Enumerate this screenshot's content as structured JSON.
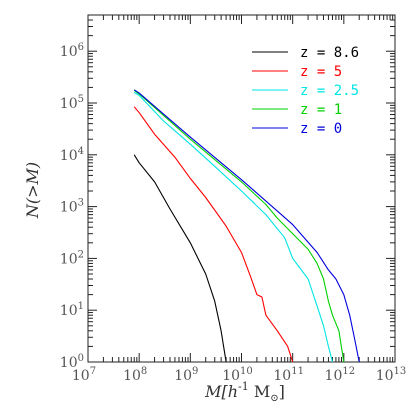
{
  "chart_data": {
    "type": "line",
    "xlabel_main": "M[h",
    "xlabel_sup": "-1",
    "xlabel_tail": " M",
    "xlabel_sub": "⊙",
    "xlabel_end": "]",
    "ylabel": "N(>M)",
    "xscale": "log",
    "yscale": "log",
    "xlim": [
      10000000.0,
      10000000000000.0
    ],
    "ylim": [
      1,
      5000000.0
    ],
    "x_ticks": [
      {
        "exp": 7,
        "base": "10",
        "sup": "7"
      },
      {
        "exp": 8,
        "base": "10",
        "sup": "8"
      },
      {
        "exp": 9,
        "base": "10",
        "sup": "9"
      },
      {
        "exp": 10,
        "base": "10",
        "sup": "10"
      },
      {
        "exp": 11,
        "base": "10",
        "sup": "11"
      },
      {
        "exp": 12,
        "base": "10",
        "sup": "12"
      },
      {
        "exp": 13,
        "base": "10",
        "sup": "13"
      }
    ],
    "y_ticks": [
      {
        "exp": 0,
        "base": "10",
        "sup": "0"
      },
      {
        "exp": 1,
        "base": "10",
        "sup": "1"
      },
      {
        "exp": 2,
        "base": "10",
        "sup": "2"
      },
      {
        "exp": 3,
        "base": "10",
        "sup": "3"
      },
      {
        "exp": 4,
        "base": "10",
        "sup": "4"
      },
      {
        "exp": 5,
        "base": "10",
        "sup": "5"
      },
      {
        "exp": 6,
        "base": "10",
        "sup": "6"
      }
    ],
    "grid": false,
    "legend_position": "top-right",
    "series": [
      {
        "name": "z = 8.6",
        "color": "#000000",
        "points": [
          [
            80000000.0,
            10000
          ],
          [
            100000000.0,
            7000
          ],
          [
            200000000.0,
            3000
          ],
          [
            400000000.0,
            900
          ],
          [
            1000000000.0,
            200
          ],
          [
            2000000000.0,
            50
          ],
          [
            3000000000.0,
            15
          ],
          [
            4000000000.0,
            4
          ],
          [
            5000000000.0,
            1
          ]
        ]
      },
      {
        "name": "z = 5",
        "color": "#ff0000",
        "points": [
          [
            80000000.0,
            85000
          ],
          [
            100000000.0,
            65000
          ],
          [
            200000000.0,
            25000
          ],
          [
            500000000.0,
            9000
          ],
          [
            1000000000.0,
            3500
          ],
          [
            2000000000.0,
            1500
          ],
          [
            5000000000.0,
            420
          ],
          [
            10000000000.0,
            130
          ],
          [
            15000000000.0,
            45
          ],
          [
            20000000000.0,
            20
          ],
          [
            25000000000.0,
            18
          ],
          [
            30000000000.0,
            8
          ],
          [
            50000000000.0,
            4
          ],
          [
            80000000000.0,
            2
          ],
          [
            100000000000.0,
            1
          ]
        ]
      },
      {
        "name": "z = 2.5",
        "color": "#00e5e5",
        "points": [
          [
            80000000.0,
            160000
          ],
          [
            100000000.0,
            140000
          ],
          [
            300000000.0,
            45000
          ],
          [
            1000000000.0,
            16000
          ],
          [
            3000000000.0,
            6000
          ],
          [
            10000000000.0,
            2000
          ],
          [
            30000000000.0,
            700
          ],
          [
            70000000000.0,
            250
          ],
          [
            100000000000.0,
            100
          ],
          [
            200000000000.0,
            40
          ],
          [
            300000000000.0,
            12
          ],
          [
            400000000000.0,
            5
          ],
          [
            500000000000.0,
            2
          ],
          [
            600000000000.0,
            1
          ]
        ]
      },
      {
        "name": "z = 1",
        "color": "#00d000",
        "points": [
          [
            80000000.0,
            175000
          ],
          [
            100000000.0,
            150000
          ],
          [
            1000000000.0,
            20000
          ],
          [
            10000000000.0,
            3000
          ],
          [
            30000000000.0,
            1100
          ],
          [
            50000000000.0,
            600
          ],
          [
            100000000000.0,
            300
          ],
          [
            200000000000.0,
            150
          ],
          [
            300000000000.0,
            80
          ],
          [
            400000000000.0,
            40
          ],
          [
            500000000000.0,
            15
          ],
          [
            600000000000.0,
            8
          ],
          [
            800000000000.0,
            4
          ],
          [
            1000000000000.0,
            1
          ]
        ]
      },
      {
        "name": "z = 0",
        "color": "#0000dd",
        "points": [
          [
            80000000.0,
            180000
          ],
          [
            100000000.0,
            155000
          ],
          [
            1000000000.0,
            22000
          ],
          [
            10000000000.0,
            3300
          ],
          [
            100000000000.0,
            450
          ],
          [
            300000000000.0,
            130
          ],
          [
            500000000000.0,
            60
          ],
          [
            700000000000.0,
            40
          ],
          [
            1000000000000.0,
            20
          ],
          [
            1300000000000.0,
            8
          ],
          [
            1600000000000.0,
            3
          ],
          [
            2000000000000.0,
            1
          ]
        ]
      }
    ]
  }
}
